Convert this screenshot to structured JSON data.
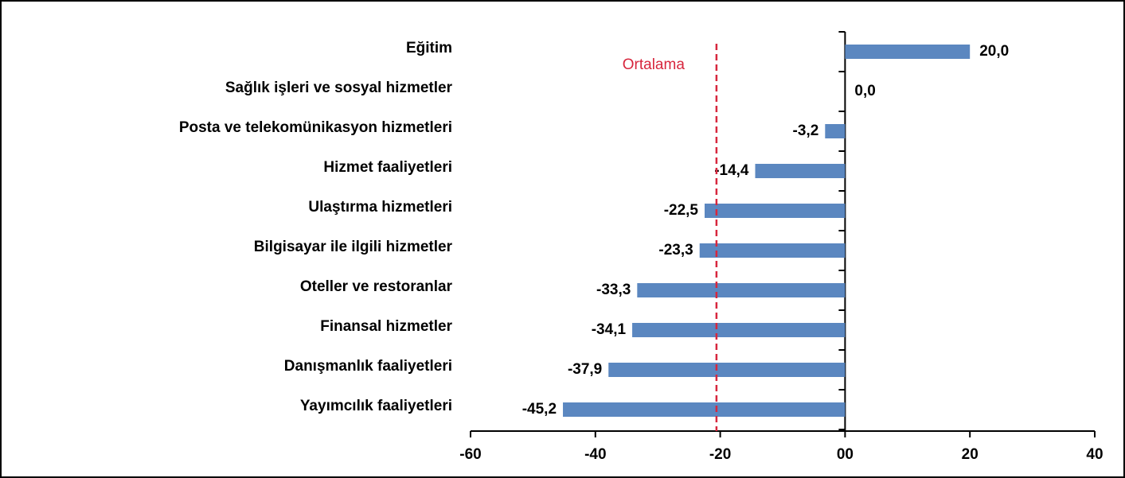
{
  "chart_data": {
    "type": "barh",
    "categories": [
      "Eğitim",
      "Sağlık işleri ve sosyal hizmetler",
      "Posta ve telekomünikasyon hizmetleri",
      "Hizmet faaliyetleri",
      "Ulaştırma hizmetleri",
      "Bilgisayar ile ilgili hizmetler",
      "Oteller ve restoranlar",
      "Finansal hizmetler",
      "Danışmanlık faaliyetleri",
      "Yayımcılık faaliyetleri"
    ],
    "values": [
      20.0,
      0.0,
      -3.2,
      -14.4,
      -22.5,
      -23.3,
      -33.3,
      -34.1,
      -37.9,
      -45.2
    ],
    "value_labels": [
      "20,0",
      "0,0",
      "-3,2",
      "-14,4",
      "-22,5",
      "-23,3",
      "-33,3",
      "-34,1",
      "-37,9",
      "-45,2"
    ],
    "color": "#5b87c0",
    "xlim": [
      -60,
      40
    ],
    "xticks": [
      -60,
      -40,
      -20,
      {
        "value": 0,
        "label": "00"
      },
      20,
      40
    ],
    "reference_line": {
      "value": -20.6,
      "label": "Ortalama",
      "color": "#d7263d"
    }
  }
}
